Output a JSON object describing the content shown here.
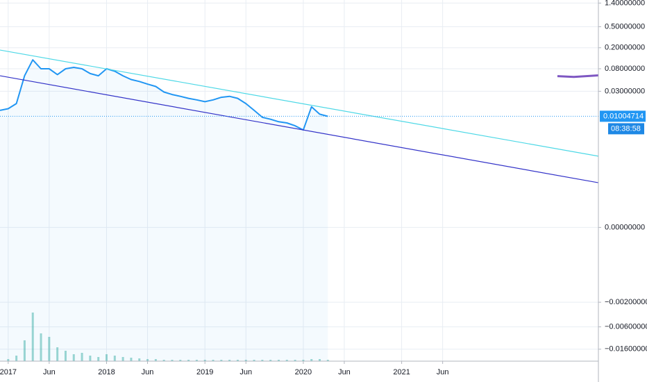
{
  "chart_data": {
    "type": "line",
    "log_scale": true,
    "grid": true,
    "xlim": [
      "2016-12",
      "2023-01"
    ],
    "ylim": [
      -0.027,
      1.6
    ],
    "xticks": [
      {
        "value": "2017-01",
        "label": "2017"
      },
      {
        "value": "2017-06",
        "label": "Jun"
      },
      {
        "value": "2018-01",
        "label": "2018"
      },
      {
        "value": "2018-06",
        "label": "Jun"
      },
      {
        "value": "2019-01",
        "label": "2019"
      },
      {
        "value": "2019-06",
        "label": "Jun"
      },
      {
        "value": "2020-01",
        "label": "2020"
      },
      {
        "value": "2020-06",
        "label": "Jun"
      },
      {
        "value": "2021-01",
        "label": "2021"
      },
      {
        "value": "2021-06",
        "label": "Jun"
      }
    ],
    "yticks": [
      {
        "value": 1.4,
        "label": "1.40000000"
      },
      {
        "value": 0.5,
        "label": "0.50000000"
      },
      {
        "value": 0.2,
        "label": "0.20000000"
      },
      {
        "value": 0.08,
        "label": "0.08000000"
      },
      {
        "value": 0.03,
        "label": "0.03000000"
      },
      {
        "value": 0,
        "label": "0.00000000"
      },
      {
        "value": -0.002,
        "label": "−0.00200000"
      },
      {
        "value": -0.006,
        "label": "−0.00600000"
      },
      {
        "value": -0.016,
        "label": "−0.01600000"
      }
    ],
    "x": [
      "2016-12",
      "2017-01",
      "2017-02",
      "2017-03",
      "2017-04",
      "2017-05",
      "2017-06",
      "2017-07",
      "2017-08",
      "2017-09",
      "2017-10",
      "2017-11",
      "2017-12",
      "2018-01",
      "2018-02",
      "2018-03",
      "2018-04",
      "2018-05",
      "2018-06",
      "2018-07",
      "2018-08",
      "2018-09",
      "2018-10",
      "2018-11",
      "2018-12",
      "2019-01",
      "2019-02",
      "2019-03",
      "2019-04",
      "2019-05",
      "2019-06",
      "2019-07",
      "2019-08",
      "2019-09",
      "2019-10",
      "2019-11",
      "2019-12",
      "2020-01",
      "2020-02",
      "2020-03",
      "2020-04"
    ],
    "series": [
      {
        "color": "#2196f3",
        "values": [
          0.013,
          0.014,
          0.0175,
          0.059,
          0.118,
          0.08,
          0.08,
          0.062,
          0.08,
          0.085,
          0.08,
          0.065,
          0.059,
          0.08,
          0.072,
          0.059,
          0.05,
          0.046,
          0.041,
          0.037,
          0.029,
          0.026,
          0.024,
          0.022,
          0.0206,
          0.019,
          0.0206,
          0.023,
          0.024,
          0.022,
          0.0175,
          0.013,
          0.0096,
          0.0088,
          0.0079,
          0.0075,
          0.0066,
          0.0055,
          0.0152,
          0.011,
          0.01
        ]
      }
    ],
    "last_price": 0.01004714,
    "countdown": "08:38:58",
    "trend_lines": [
      {
        "color": "#4dd8e6",
        "x": [
          "2016-12",
          "2023-01"
        ],
        "values": [
          0.181,
          0.0017
        ]
      },
      {
        "color": "#3232c8",
        "x": [
          "2016-12",
          "2023-01"
        ],
        "values": [
          0.059,
          0.00048
        ]
      }
    ],
    "indicator": {
      "color": "#7e57c2",
      "x": [
        "2022-08",
        "2022-10",
        "2023-01"
      ],
      "values": [
        0.058,
        0.056,
        0.06
      ]
    },
    "volume": {
      "color": "#26a69a",
      "x": [
        "2017-01",
        "2017-02",
        "2017-03",
        "2017-04",
        "2017-05",
        "2017-06",
        "2017-07",
        "2017-08",
        "2017-09",
        "2017-10",
        "2017-11",
        "2017-12",
        "2018-01",
        "2018-02",
        "2018-03",
        "2018-04",
        "2018-05",
        "2018-06",
        "2018-07",
        "2018-08",
        "2018-09",
        "2018-10",
        "2018-11",
        "2018-12",
        "2019-01",
        "2019-02",
        "2019-03",
        "2019-04",
        "2019-05",
        "2019-06",
        "2019-07",
        "2019-08",
        "2019-09",
        "2019-10",
        "2019-11",
        "2019-12",
        "2020-01",
        "2020-02",
        "2020-03",
        "2020-04"
      ],
      "values": [
        3,
        8,
        30,
        70,
        40,
        35,
        20,
        15,
        10,
        12,
        8,
        6,
        10,
        8,
        6,
        5,
        4,
        3,
        3,
        2,
        2,
        2,
        2,
        2,
        2,
        2,
        2,
        2,
        2,
        2,
        2,
        2,
        2,
        2,
        2,
        2,
        2,
        3,
        3,
        2
      ]
    }
  }
}
